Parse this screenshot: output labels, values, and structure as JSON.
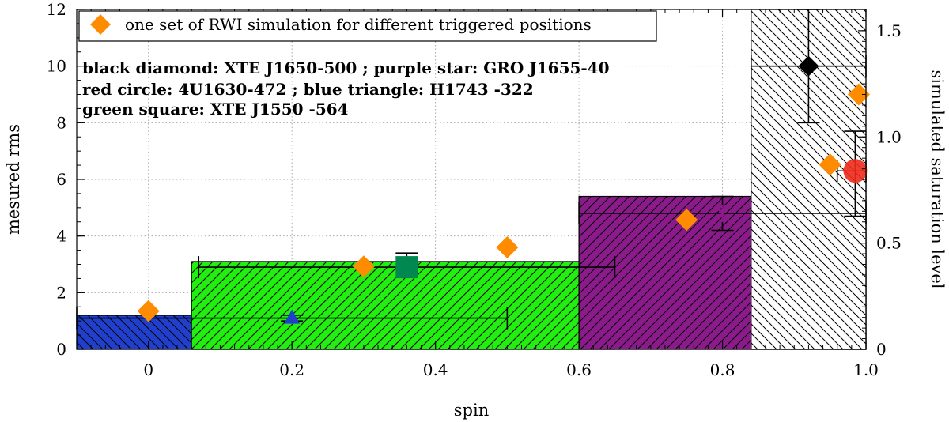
{
  "chart_data": {
    "type": "bar",
    "xlabel": "spin",
    "ylabel_left": "mesured rms",
    "ylabel_right": "simulated saturation level",
    "xlim": [
      -0.1,
      1.0
    ],
    "ylim_left": [
      0,
      12
    ],
    "ylim_right": [
      0,
      1.6
    ],
    "x_ticks": [
      "0",
      "0.2",
      "0.4",
      "0.6",
      "0.8",
      "1.0"
    ],
    "x_tick_values": [
      0,
      0.2,
      0.4,
      0.6,
      0.8,
      1.0
    ],
    "y_left_ticks": [
      "0",
      "2",
      "4",
      "6",
      "8",
      "10",
      "12"
    ],
    "y_left_tick_values": [
      0,
      2,
      4,
      6,
      8,
      10,
      12
    ],
    "y_right_ticks": [
      "0",
      "0.5",
      "1.0",
      "1.5"
    ],
    "y_right_tick_values": [
      0,
      0.5,
      1.0,
      1.5
    ],
    "grid": true,
    "legend_position": "top-left",
    "legend": {
      "label": "one set of RWI simulation for different triggered positions",
      "color": "#ff8c00"
    },
    "annotations": [
      "black diamond: XTE J1650-500 ; purple star: GRO J1655-40",
      "red circle: 4U1630-472 ; blue triangle: H1743 -322",
      "green square: XTE J1550 -564"
    ],
    "bars": [
      {
        "name": "H1743 -322 spin range",
        "color": "#1f3fcc",
        "hatch": "back",
        "x_range": [
          -0.1,
          0.5
        ],
        "height": 1.2
      },
      {
        "name": "XTE J1550 -564 spin range",
        "color": "#22ee11",
        "hatch": "forward",
        "x_range": [
          0.06,
          0.65
        ],
        "height": 3.1
      },
      {
        "name": "GRO J1655-40 spin range",
        "color": "#8b1a8b",
        "hatch": "forward",
        "x_range": [
          0.6,
          1.0
        ],
        "height": 5.4
      },
      {
        "name": "4U1630-472 spin range",
        "color": "#ee2a1a",
        "hatch": "back",
        "x_range": [
          0.955,
          1.0
        ],
        "height": 7.7
      },
      {
        "name": "XTE J1650-500 spin range",
        "color": "#ffffff",
        "hatch": "back",
        "x_range": [
          0.84,
          1.0
        ],
        "height": 12.0
      }
    ],
    "sources": [
      {
        "name": "H1743 -322",
        "marker": "triangle",
        "color": "#1f3fcc",
        "spin": 0.2,
        "rms": 1.1,
        "spin_err": [
          -0.1,
          0.5
        ],
        "rms_err": [
          1.0,
          1.2
        ]
      },
      {
        "name": "XTE J1550 -564",
        "marker": "square",
        "color": "#008850",
        "spin": 0.36,
        "rms": 2.9,
        "spin_err": [
          0.07,
          0.65
        ],
        "rms_err": [
          2.9,
          3.4
        ]
      },
      {
        "name": "GRO J1655-40",
        "marker": "star",
        "color": "#8b1a8b",
        "spin": 0.8,
        "rms": 4.8,
        "spin_err": [
          0.6,
          1.0
        ],
        "rms_err": [
          4.2,
          5.4
        ]
      },
      {
        "name": "4U1630-472",
        "marker": "circle",
        "color": "#ee2a1a",
        "spin": 0.985,
        "rms": 6.3,
        "spin_err": [
          0.96,
          1.0
        ],
        "rms_err": [
          4.7,
          7.7
        ]
      },
      {
        "name": "XTE J1650-500",
        "marker": "diamond",
        "color": "#000000",
        "spin": 0.92,
        "rms": 10.0,
        "spin_err": [
          0.84,
          1.0
        ],
        "rms_err": [
          8.0,
          12.0
        ]
      }
    ],
    "simulation": {
      "name": "one set of RWI simulation for different triggered positions",
      "color": "#ff8c00",
      "x": [
        0.0,
        0.3,
        0.5,
        0.75,
        0.95,
        0.99
      ],
      "y_saturation": [
        0.18,
        0.39,
        0.48,
        0.61,
        0.87,
        1.2
      ]
    }
  }
}
